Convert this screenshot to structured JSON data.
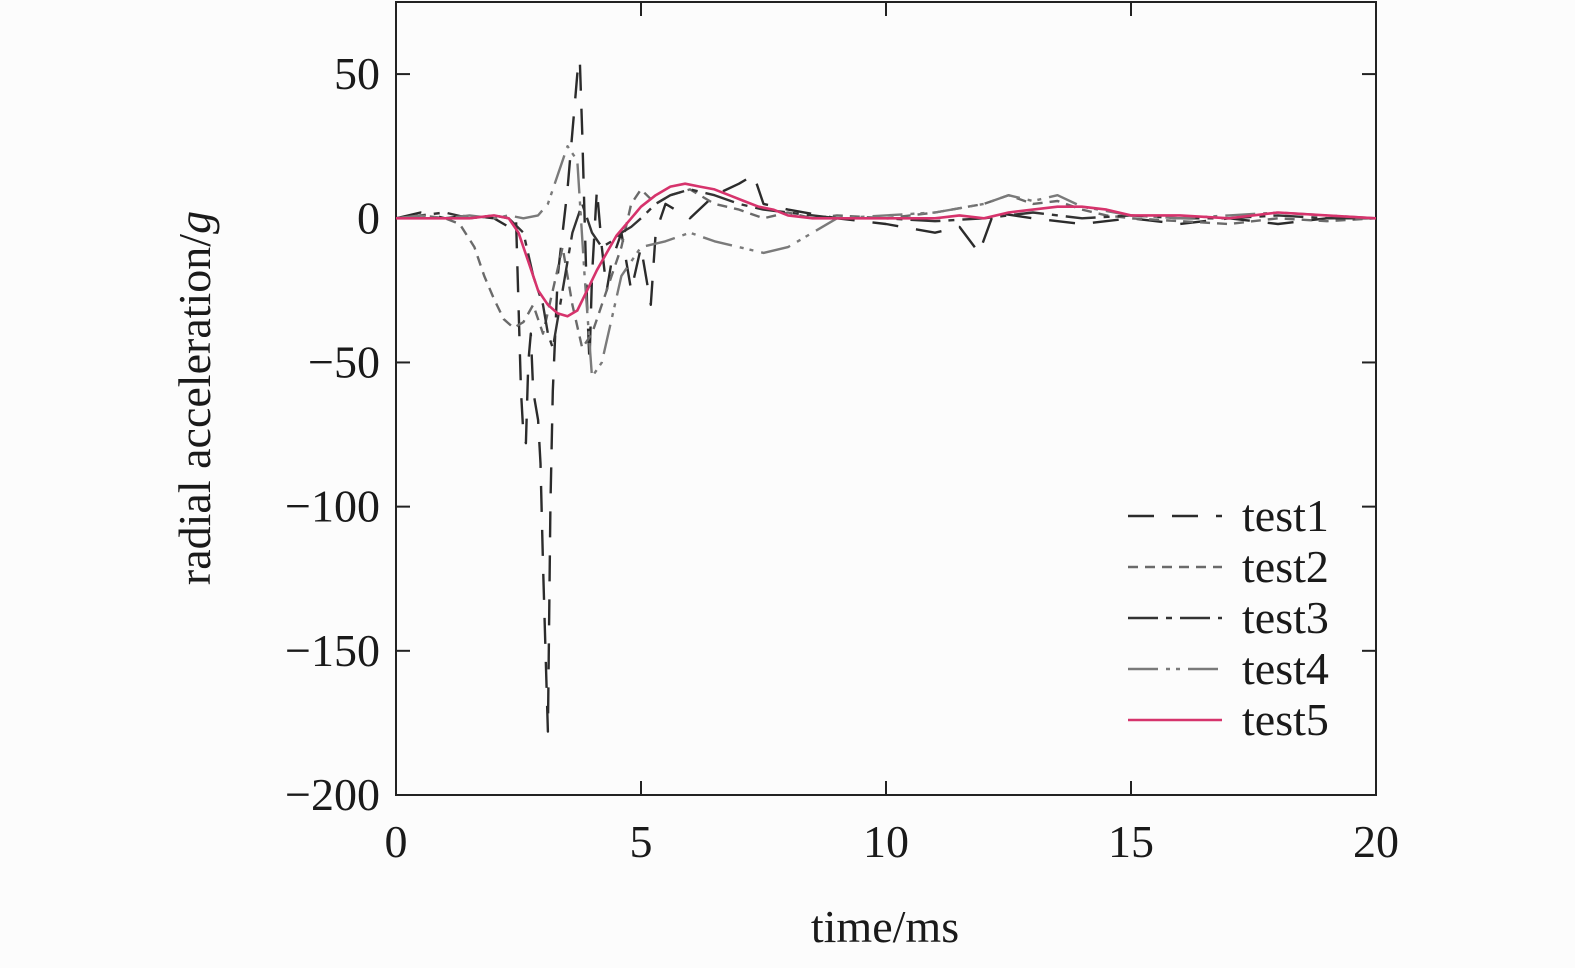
{
  "chart_data": {
    "type": "line",
    "title": "",
    "xlabel": "time/ms",
    "ylabel_main": "radial acceleration/",
    "ylabel_unit": "g",
    "xlim": [
      0,
      20
    ],
    "ylim": [
      -200,
      75
    ],
    "xticks": [
      0,
      5,
      10,
      15,
      20
    ],
    "yticks": [
      50,
      0,
      -50,
      -100,
      -150,
      -200
    ],
    "xtick_labels": [
      "0",
      "5",
      "10",
      "15",
      "20"
    ],
    "ytick_labels": [
      "50",
      "0",
      "−50",
      "−100",
      "−150",
      "−200"
    ],
    "grid": false,
    "legend_position": "lower-right",
    "series": [
      {
        "name": "test1",
        "color": "#2b2b2b",
        "dash": "26,18",
        "x": [
          0,
          0.5,
          1,
          1.5,
          2,
          2.3,
          2.45,
          2.55,
          2.6,
          2.65,
          2.7,
          2.75,
          2.8,
          2.9,
          2.95,
          3.0,
          3.05,
          3.1,
          3.15,
          3.2,
          3.3,
          3.4,
          3.5,
          3.6,
          3.65,
          3.7,
          3.75,
          3.8,
          3.85,
          3.9,
          3.95,
          4.0,
          4.1,
          4.2,
          4.3,
          4.4,
          4.6,
          4.8,
          5.0,
          5.2,
          5.3,
          5.5,
          6.0,
          6.5,
          7.0,
          7.3,
          7.5,
          8,
          9,
          10,
          11,
          11.5,
          11.9,
          12.2,
          13,
          14,
          15,
          16,
          17,
          18,
          19,
          20
        ],
        "y": [
          0,
          2,
          0,
          1,
          0,
          -3,
          0,
          -60,
          -75,
          -78,
          -50,
          -40,
          -60,
          -70,
          -85,
          -120,
          -150,
          -178,
          -100,
          -60,
          -20,
          -5,
          10,
          30,
          40,
          50,
          55,
          30,
          0,
          -30,
          -50,
          -20,
          10,
          -10,
          -25,
          -15,
          -5,
          -25,
          -10,
          -30,
          -5,
          5,
          0,
          8,
          12,
          15,
          5,
          3,
          0,
          -2,
          -5,
          -3,
          -12,
          2,
          0,
          -2,
          0,
          -2,
          0,
          -2,
          0,
          0
        ]
      },
      {
        "name": "test2",
        "color": "#6a6a6a",
        "dash": "10,7",
        "x": [
          0,
          0.5,
          1,
          1.3,
          1.6,
          1.8,
          2.0,
          2.2,
          2.4,
          2.6,
          2.8,
          3.0,
          3.2,
          3.4,
          3.6,
          3.8,
          4.0,
          4.2,
          4.4,
          4.6,
          4.8,
          5.0,
          5.3,
          5.6,
          6.0,
          6.5,
          7.0,
          7.5,
          8,
          8.5,
          9,
          10,
          11,
          12,
          12.5,
          13,
          13.5,
          14,
          14.5,
          15,
          16,
          17,
          18,
          19,
          20
        ],
        "y": [
          0,
          1,
          0,
          -2,
          -10,
          -20,
          -28,
          -35,
          -38,
          -36,
          -30,
          -40,
          -25,
          -10,
          -30,
          -45,
          -40,
          -30,
          -20,
          -10,
          5,
          10,
          5,
          8,
          10,
          5,
          3,
          0,
          2,
          0,
          1,
          0,
          2,
          5,
          8,
          5,
          6,
          3,
          1,
          0,
          -1,
          -2,
          0,
          -1,
          0
        ]
      },
      {
        "name": "test3",
        "color": "#333333",
        "dash": "30,8,6,8",
        "x": [
          0,
          0.5,
          1,
          1.5,
          2,
          2.3,
          2.6,
          2.8,
          3.0,
          3.1,
          3.2,
          3.3,
          3.4,
          3.5,
          3.6,
          3.7,
          3.8,
          3.9,
          4.0,
          4.2,
          4.4,
          4.6,
          4.8,
          5.0,
          5.3,
          5.6,
          6.0,
          6.5,
          7.0,
          7.5,
          8,
          9,
          10,
          11,
          12,
          13,
          14,
          15,
          16,
          17,
          18,
          19,
          20
        ],
        "y": [
          0,
          1,
          2,
          0,
          1,
          0,
          -5,
          -20,
          -30,
          -40,
          -45,
          -35,
          -25,
          -15,
          -5,
          0,
          5,
          0,
          -5,
          -10,
          -8,
          -5,
          -3,
          0,
          5,
          8,
          10,
          8,
          5,
          3,
          2,
          0,
          0,
          -1,
          0,
          2,
          0,
          1,
          0,
          0,
          1,
          0,
          0
        ]
      },
      {
        "name": "test4",
        "color": "#7a7a7a",
        "dash": "30,8,4,6,4,8",
        "x": [
          0,
          0.5,
          1,
          1.5,
          2,
          2.3,
          2.6,
          2.9,
          3.1,
          3.3,
          3.5,
          3.7,
          3.85,
          4.0,
          4.2,
          4.4,
          4.6,
          5.0,
          5.5,
          6.0,
          6.5,
          7.0,
          7.5,
          8.0,
          8.5,
          9,
          10,
          11,
          12,
          12.5,
          13,
          13.5,
          14,
          15,
          16,
          17,
          18,
          19,
          20
        ],
        "y": [
          0,
          1,
          0,
          1,
          0,
          1,
          0,
          1,
          5,
          15,
          25,
          20,
          -20,
          -55,
          -50,
          -35,
          -20,
          -10,
          -8,
          -5,
          -8,
          -10,
          -12,
          -10,
          -5,
          0,
          1,
          2,
          5,
          8,
          6,
          8,
          4,
          1,
          0,
          1,
          2,
          1,
          0
        ]
      },
      {
        "name": "test5",
        "color": "#d6336c",
        "dash": "",
        "x": [
          0,
          0.5,
          1,
          1.5,
          2,
          2.3,
          2.5,
          2.7,
          2.9,
          3.1,
          3.3,
          3.5,
          3.7,
          3.9,
          4.1,
          4.3,
          4.5,
          4.8,
          5.0,
          5.3,
          5.6,
          5.9,
          6.2,
          6.5,
          6.8,
          7.1,
          7.4,
          7.7,
          8.0,
          8.5,
          9,
          10,
          11,
          11.5,
          12,
          12.5,
          13,
          13.5,
          14,
          14.5,
          15,
          16,
          17,
          18,
          19,
          20
        ],
        "y": [
          0,
          0,
          0,
          0,
          1,
          0,
          -5,
          -15,
          -25,
          -30,
          -33,
          -34,
          -32,
          -25,
          -18,
          -12,
          -6,
          0,
          4,
          8,
          11,
          12,
          11,
          10,
          8,
          6,
          4,
          3,
          1,
          0,
          0,
          0,
          0,
          1,
          0,
          2,
          3,
          4,
          4,
          3,
          1,
          1,
          0,
          2,
          1,
          0
        ]
      }
    ]
  }
}
